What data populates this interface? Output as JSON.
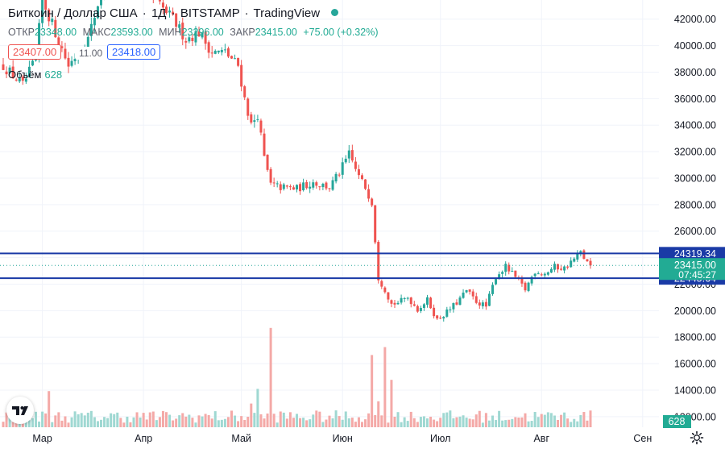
{
  "header": {
    "symbol": "Биткоин / Доллар США",
    "interval": "1Д",
    "exchange": "BITSTAMP",
    "provider": "TradingView"
  },
  "ohlc": {
    "open_label": "ОТКР",
    "open": "23348.00",
    "high_label": "МАКС",
    "high": "23593.00",
    "low_label": "МИН",
    "low": "23296.00",
    "close_label": "ЗАКР",
    "close": "23415.00",
    "change": "+75.00 (+0.32%)"
  },
  "trade": {
    "sell": "23407.00",
    "spread": "11.00",
    "buy": "23418.00"
  },
  "volume_legend": {
    "label": "Объём",
    "value": "628"
  },
  "colors": {
    "up": "#26a69a",
    "down": "#ef5350",
    "line": "#1a3aa6",
    "price": "#22ab94",
    "grid": "#f0f3fa"
  },
  "chart_data": {
    "type": "candlestick",
    "ylim": [
      11200,
      43200
    ],
    "y_ticks": [
      12000,
      14000,
      16000,
      18000,
      20000,
      22000,
      24000,
      26000,
      28000,
      30000,
      32000,
      34000,
      36000,
      38000,
      40000,
      42000
    ],
    "x_labels": [
      {
        "label": "Мар",
        "day": 12
      },
      {
        "label": "Апр",
        "day": 43
      },
      {
        "label": "Май",
        "day": 73
      },
      {
        "label": "Июн",
        "day": 104
      },
      {
        "label": "Июл",
        "day": 134
      },
      {
        "label": "Авг",
        "day": 165
      },
      {
        "label": "Сен",
        "day": 196
      }
    ],
    "waypoints": [
      [
        0,
        38500
      ],
      [
        6,
        37000
      ],
      [
        10,
        39000
      ],
      [
        12,
        43500
      ],
      [
        20,
        38500
      ],
      [
        26,
        40500
      ],
      [
        30,
        44000
      ],
      [
        34,
        47000
      ],
      [
        38,
        46000
      ],
      [
        42,
        45500
      ],
      [
        46,
        43500
      ],
      [
        52,
        42000
      ],
      [
        56,
        40500
      ],
      [
        60,
        41000
      ],
      [
        64,
        39500
      ],
      [
        68,
        39500
      ],
      [
        72,
        38500
      ],
      [
        74,
        36000
      ],
      [
        76,
        34000
      ],
      [
        78,
        34800
      ],
      [
        80,
        31500
      ],
      [
        82,
        29500
      ],
      [
        85,
        29300
      ],
      [
        90,
        29200
      ],
      [
        95,
        29700
      ],
      [
        100,
        29300
      ],
      [
        103,
        30400
      ],
      [
        106,
        31800
      ],
      [
        109,
        30100
      ],
      [
        111,
        29300
      ],
      [
        113,
        28200
      ],
      [
        115,
        22500
      ],
      [
        117,
        21600
      ],
      [
        119,
        20500
      ],
      [
        121,
        20600
      ],
      [
        124,
        21000
      ],
      [
        127,
        20100
      ],
      [
        130,
        20800
      ],
      [
        133,
        19300
      ],
      [
        136,
        19900
      ],
      [
        139,
        20600
      ],
      [
        142,
        21500
      ],
      [
        145,
        20700
      ],
      [
        148,
        20300
      ],
      [
        151,
        22600
      ],
      [
        154,
        23300
      ],
      [
        157,
        22500
      ],
      [
        160,
        21600
      ],
      [
        163,
        23000
      ],
      [
        166,
        22800
      ],
      [
        169,
        23300
      ],
      [
        172,
        23200
      ],
      [
        175,
        23900
      ],
      [
        177,
        24400
      ],
      [
        179,
        23600
      ],
      [
        180,
        23415
      ]
    ],
    "volume_spikes": [
      [
        14,
        3.2
      ],
      [
        76,
        2.1
      ],
      [
        78,
        3.4
      ],
      [
        82,
        8.8
      ],
      [
        113,
        6.4
      ],
      [
        115,
        2.3
      ],
      [
        117,
        7.1
      ],
      [
        119,
        4.2
      ]
    ],
    "last_close": 23415,
    "price_lines": [
      24319.34,
      22445.64
    ],
    "price_label_time": "07:45:27",
    "volume_last": 628
  }
}
